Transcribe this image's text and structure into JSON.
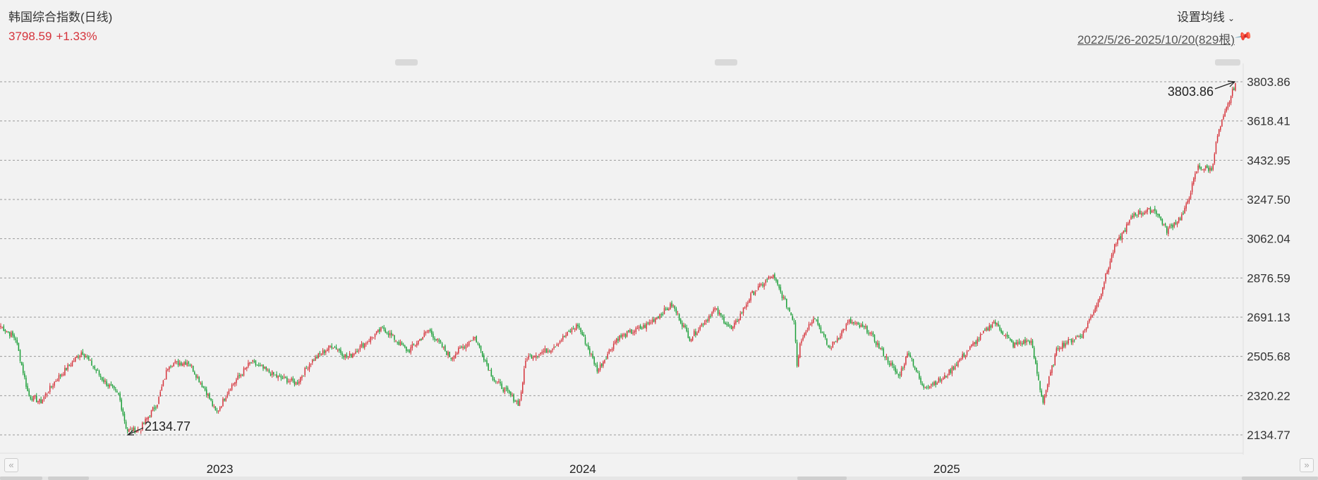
{
  "header": {
    "title": "韩国综合指数(日线)",
    "price": "3798.59",
    "change": "+1.33%",
    "ma_setting": "设置均线",
    "range": "2022/5/26-2025/10/20(829根)"
  },
  "icons": {
    "ma_dropdown": "chevron-down-icon",
    "pin": "pin-icon",
    "prev": "double-left-icon",
    "next": "double-right-icon"
  },
  "colors": {
    "up": "#d5333b",
    "down": "#1a9e37",
    "price": "#d5333b"
  },
  "chart_data": {
    "type": "candlestick",
    "y_ticks": [
      "3803.86",
      "3618.41",
      "3432.95",
      "3247.50",
      "3062.04",
      "2876.59",
      "2691.13",
      "2505.68",
      "2320.22",
      "2134.77"
    ],
    "ylim": [
      2134.77,
      3803.86
    ],
    "x_range": [
      "2022-05-26",
      "2025-10-20"
    ],
    "x_ticks": [
      {
        "label": "2023",
        "date": "2023-01-02"
      },
      {
        "label": "2024",
        "date": "2024-01-02"
      },
      {
        "label": "2025",
        "date": "2025-01-02"
      }
    ],
    "annotations": [
      {
        "label": "2134.77",
        "date": "2022-09-30",
        "value": 2134.77
      },
      {
        "label": "3803.86",
        "date": "2025-10-20",
        "value": 3803.86
      }
    ],
    "close_series": [
      [
        "2022-05-26",
        2650
      ],
      [
        "2022-06-10",
        2590
      ],
      [
        "2022-06-23",
        2320
      ],
      [
        "2022-07-05",
        2290
      ],
      [
        "2022-07-20",
        2390
      ],
      [
        "2022-08-10",
        2500
      ],
      [
        "2022-08-16",
        2530
      ],
      [
        "2022-09-05",
        2400
      ],
      [
        "2022-09-22",
        2320
      ],
      [
        "2022-09-30",
        2155
      ],
      [
        "2022-10-13",
        2160
      ],
      [
        "2022-10-31",
        2290
      ],
      [
        "2022-11-11",
        2470
      ],
      [
        "2022-12-01",
        2480
      ],
      [
        "2022-12-20",
        2330
      ],
      [
        "2022-12-29",
        2236
      ],
      [
        "2023-01-12",
        2360
      ],
      [
        "2023-02-02",
        2480
      ],
      [
        "2023-02-28",
        2410
      ],
      [
        "2023-03-20",
        2380
      ],
      [
        "2023-04-03",
        2480
      ],
      [
        "2023-04-25",
        2560
      ],
      [
        "2023-05-10",
        2500
      ],
      [
        "2023-06-15",
        2640
      ],
      [
        "2023-07-10",
        2530
      ],
      [
        "2023-07-31",
        2630
      ],
      [
        "2023-08-22",
        2500
      ],
      [
        "2023-09-15",
        2600
      ],
      [
        "2023-10-04",
        2400
      ],
      [
        "2023-10-30",
        2280
      ],
      [
        "2023-11-06",
        2500
      ],
      [
        "2023-11-30",
        2540
      ],
      [
        "2023-12-28",
        2655
      ],
      [
        "2024-01-17",
        2440
      ],
      [
        "2024-02-05",
        2590
      ],
      [
        "2024-03-05",
        2650
      ],
      [
        "2024-04-01",
        2750
      ],
      [
        "2024-04-19",
        2590
      ],
      [
        "2024-05-14",
        2730
      ],
      [
        "2024-05-31",
        2630
      ],
      [
        "2024-06-20",
        2800
      ],
      [
        "2024-07-11",
        2890
      ],
      [
        "2024-08-02",
        2670
      ],
      [
        "2024-08-05",
        2441
      ],
      [
        "2024-08-07",
        2570
      ],
      [
        "2024-08-22",
        2700
      ],
      [
        "2024-09-06",
        2540
      ],
      [
        "2024-09-26",
        2670
      ],
      [
        "2024-10-15",
        2630
      ],
      [
        "2024-11-15",
        2410
      ],
      [
        "2024-11-25",
        2530
      ],
      [
        "2024-12-09",
        2360
      ],
      [
        "2024-12-30",
        2400
      ],
      [
        "2025-01-21",
        2520
      ],
      [
        "2025-02-19",
        2670
      ],
      [
        "2025-03-10",
        2560
      ],
      [
        "2025-03-28",
        2580
      ],
      [
        "2025-04-09",
        2290
      ],
      [
        "2025-04-24",
        2550
      ],
      [
        "2025-05-19",
        2610
      ],
      [
        "2025-06-04",
        2770
      ],
      [
        "2025-06-20",
        3020
      ],
      [
        "2025-07-10",
        3180
      ],
      [
        "2025-07-31",
        3200
      ],
      [
        "2025-08-12",
        3100
      ],
      [
        "2025-08-29",
        3180
      ],
      [
        "2025-09-12",
        3400
      ],
      [
        "2025-09-26",
        3390
      ],
      [
        "2025-10-02",
        3550
      ],
      [
        "2025-10-20",
        3798
      ]
    ]
  }
}
